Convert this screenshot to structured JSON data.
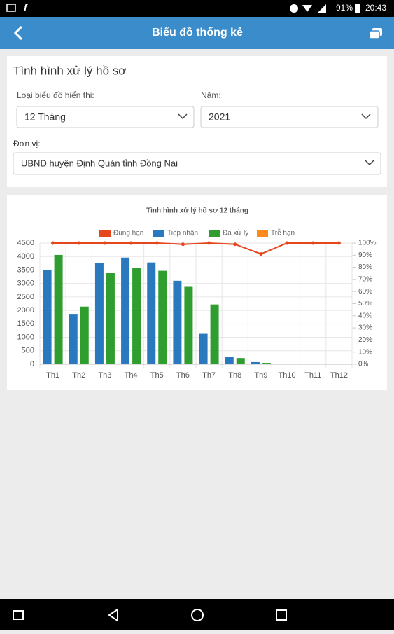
{
  "status_bar": {
    "battery": "91%",
    "time": "20:43"
  },
  "header": {
    "title": "Biểu đồ thống kê"
  },
  "filters": {
    "title": "Tình hình xử lý hồ sơ",
    "chart_type_label": "Loại biểu đồ hiển thị:",
    "chart_type_value": "12 Tháng",
    "year_label": "Năm:",
    "year_value": "2021",
    "unit_label": "Đơn vị:",
    "unit_value": "UBND huyện Định Quán tỉnh Đồng Nai"
  },
  "chart_data": {
    "type": "bar",
    "title": "Tình hình xử lý hồ sơ 12 tháng",
    "categories": [
      "Th1",
      "Th2",
      "Th3",
      "Th4",
      "Th5",
      "Th6",
      "Th7",
      "Th8",
      "Th9",
      "Th10",
      "Th11",
      "Th12"
    ],
    "series": [
      {
        "name": "Đúng hạn",
        "color": "#e5461c",
        "type": "line",
        "axis": "y2",
        "values": [
          100,
          100,
          100,
          100,
          100,
          99,
          100,
          99,
          91,
          100,
          100,
          100
        ]
      },
      {
        "name": "Tiếp nhận",
        "color": "#2a78bd",
        "values": [
          3490,
          1870,
          3750,
          3960,
          3780,
          3100,
          1130,
          260,
          80,
          0,
          0,
          0
        ]
      },
      {
        "name": "Đã xử lý",
        "color": "#2f9e2f",
        "values": [
          4060,
          2140,
          3390,
          3570,
          3470,
          2900,
          2220,
          230,
          50,
          0,
          0,
          0
        ]
      },
      {
        "name": "Trễ hạn",
        "color": "#ff8a1c",
        "type": "line",
        "axis": "y2",
        "values": [
          null,
          null,
          null,
          null,
          null,
          null,
          null,
          null,
          null,
          null,
          null,
          null
        ]
      }
    ],
    "ylim": [
      0,
      4500
    ],
    "yticks": [
      0,
      500,
      1000,
      1500,
      2000,
      2500,
      3000,
      3500,
      4000,
      4500
    ],
    "y2lim": [
      0,
      100
    ],
    "y2ticks": [
      {
        "value": 0,
        "label": "0%"
      },
      {
        "value": 10,
        "label": "10%"
      },
      {
        "value": 20,
        "label": "20%"
      },
      {
        "value": 30,
        "label": "30%"
      },
      {
        "value": 40,
        "label": "40%"
      },
      {
        "value": 50,
        "label": "50%"
      },
      {
        "value": 60,
        "label": "60%"
      },
      {
        "value": 70,
        "label": "70%"
      },
      {
        "value": 80,
        "label": "80%"
      },
      {
        "value": 90,
        "label": "90%"
      },
      {
        "value": 100,
        "label": "100%"
      }
    ],
    "grid": true
  }
}
